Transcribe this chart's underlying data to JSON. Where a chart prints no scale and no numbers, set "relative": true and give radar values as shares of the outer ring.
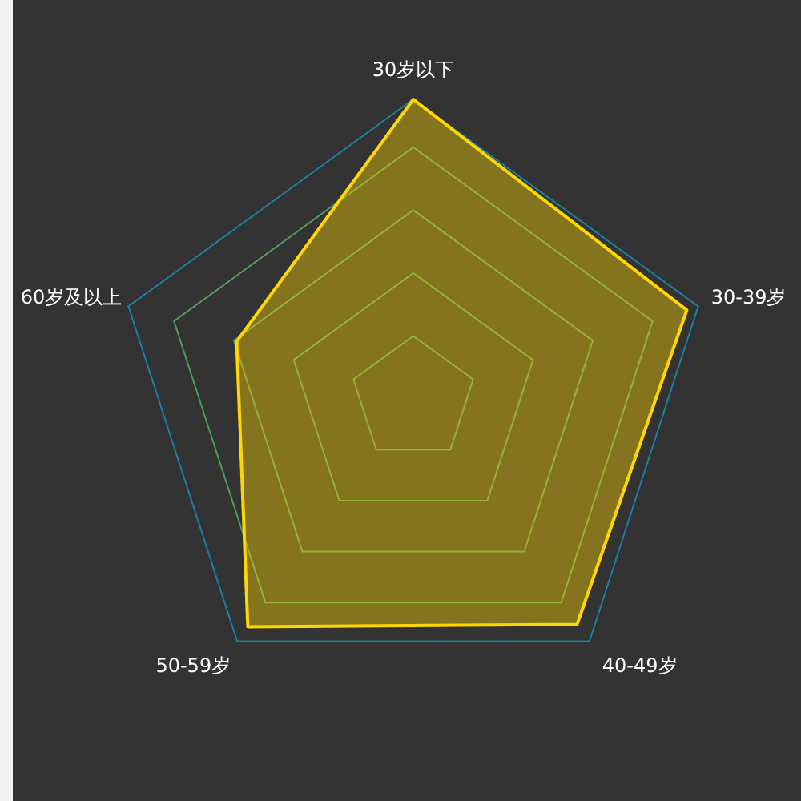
{
  "chart_data": {
    "type": "radar",
    "relative": true,
    "categories": [
      "30岁以下",
      "30-39岁",
      "40-49岁",
      "50-59岁",
      "60岁及以上"
    ],
    "series": [
      {
        "color": "#ffd700",
        "values": [
          1,
          0.96,
          0.93,
          0.94,
          0.62
        ]
      }
    ]
  }
}
